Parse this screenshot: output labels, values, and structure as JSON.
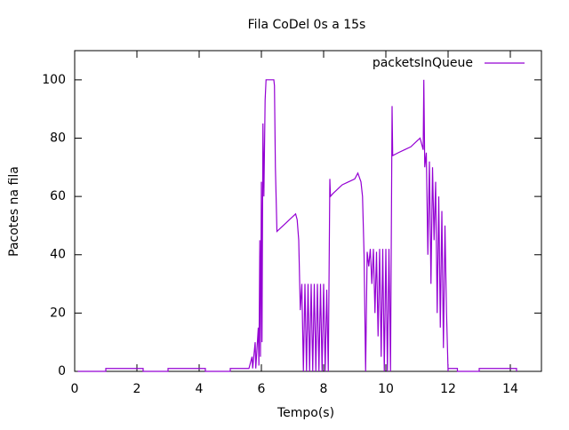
{
  "chart_data": {
    "type": "line",
    "title": "Fila CoDel 0s a 15s",
    "x_label": "Tempo(s)",
    "y_label": "Pacotes na fila",
    "xlim": [
      0,
      15
    ],
    "ylim": [
      0,
      110
    ],
    "xticks": [
      0,
      2,
      4,
      6,
      8,
      10,
      12,
      14
    ],
    "yticks": [
      0,
      20,
      40,
      60,
      80,
      100
    ],
    "legend": "top-right",
    "x": [
      0.1,
      1.0,
      1.0,
      2.2,
      2.2,
      3.0,
      3.0,
      4.2,
      4.2,
      5.0,
      5.0,
      5.6,
      5.7,
      5.72,
      5.8,
      5.82,
      5.9,
      5.92,
      5.95,
      5.97,
      6.0,
      6.02,
      6.05,
      6.08,
      6.12,
      6.15,
      6.4,
      6.42,
      6.45,
      6.5,
      6.6,
      6.7,
      6.8,
      6.9,
      7.0,
      7.1,
      7.15,
      7.2,
      7.25,
      7.3,
      7.35,
      7.4,
      7.45,
      7.5,
      7.55,
      7.6,
      7.65,
      7.7,
      7.75,
      7.8,
      7.85,
      7.9,
      7.95,
      8.0,
      8.05,
      8.1,
      8.15,
      8.2,
      8.22,
      8.3,
      8.4,
      8.5,
      8.6,
      8.8,
      9.0,
      9.1,
      9.2,
      9.25,
      9.3,
      9.35,
      9.4,
      9.45,
      9.5,
      9.55,
      9.6,
      9.65,
      9.7,
      9.75,
      9.8,
      9.85,
      9.9,
      9.95,
      10.0,
      10.05,
      10.1,
      10.15,
      10.2,
      10.22,
      10.4,
      10.6,
      10.8,
      11.0,
      11.1,
      11.2,
      11.22,
      11.25,
      11.3,
      11.35,
      11.4,
      11.45,
      11.5,
      11.55,
      11.6,
      11.65,
      11.7,
      11.75,
      11.8,
      11.85,
      11.9,
      11.95,
      12.0,
      12.0,
      12.3,
      12.3,
      13.0,
      13.0,
      14.2,
      14.2
    ],
    "series": [
      {
        "name": "packetsInQueue",
        "color": "#9400d3",
        "values": [
          0,
          0,
          1,
          1,
          0,
          0,
          1,
          1,
          0,
          0,
          1,
          1,
          5,
          1,
          10,
          1,
          15,
          2,
          45,
          5,
          65,
          10,
          85,
          60,
          93,
          100,
          100,
          98,
          70,
          48,
          49,
          50,
          51,
          52,
          53,
          54,
          52,
          45,
          21,
          30,
          0,
          30,
          0,
          30,
          0,
          30,
          0,
          30,
          0,
          30,
          0,
          30,
          0,
          30,
          0,
          28,
          0,
          66,
          60,
          61,
          62,
          63,
          64,
          65,
          66,
          68,
          65,
          60,
          40,
          0,
          41,
          36,
          42,
          30,
          42,
          20,
          41,
          12,
          42,
          5,
          42,
          0,
          42,
          0,
          42,
          0,
          91,
          74,
          75,
          76,
          77,
          79,
          80,
          76,
          100,
          70,
          75,
          40,
          72,
          30,
          70,
          45,
          65,
          20,
          60,
          15,
          55,
          8,
          50,
          20,
          0,
          1,
          1,
          0,
          0,
          1,
          1,
          0
        ]
      }
    ]
  }
}
